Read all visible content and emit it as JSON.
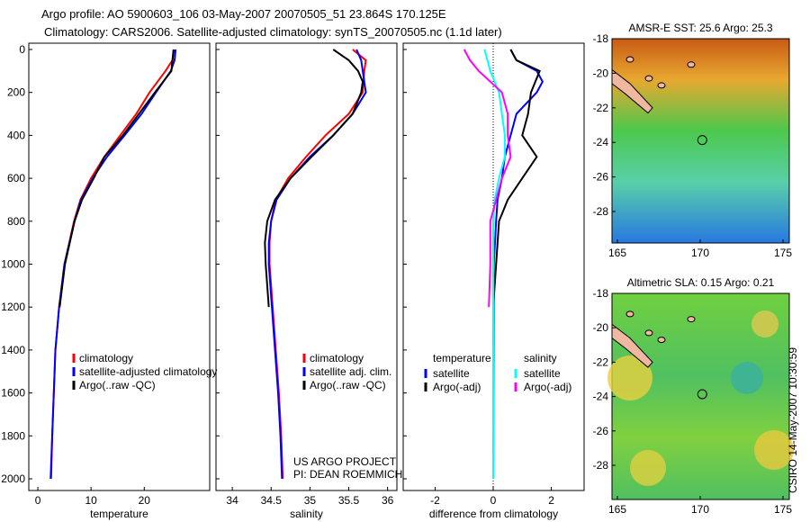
{
  "title_line1": "Argo profile: AO 5900603_106 03-May-2007 20070505_51 23.864S 170.125E",
  "title_line2": "Climatology: CARS2006. Satellite-adjusted climatology: synTS_20070505.nc (1.1d later)",
  "side_label": "CSIRO 14-May-2007 10:30:59",
  "colors": {
    "climatology": "#ff0000",
    "satellite": "#0000ff",
    "argo": "#000000",
    "sal_satellite": "#00ffff",
    "sal_argo": "#ff00ff"
  },
  "chart_data": [
    {
      "type": "line",
      "xlabel": "temperature",
      "ylim": [
        0,
        2000
      ],
      "xlim": [
        -1.7,
        32.3
      ],
      "xticks": [
        "0",
        "10",
        "20"
      ],
      "xtick_values": [
        0,
        10,
        20
      ],
      "yticks": [
        "0",
        "200",
        "400",
        "600",
        "800",
        "1000",
        "1200",
        "1400",
        "1600",
        "1800",
        "2000"
      ],
      "legend": [
        "climatology",
        "satellite-adjusted climatology",
        "Argo(..raw -QC)"
      ],
      "series": [
        {
          "name": "climatology",
          "color": "#ff0000",
          "depth": [
            0,
            50,
            100,
            200,
            300,
            400,
            500,
            600,
            700,
            800,
            1000,
            1200,
            1400,
            1600,
            1800,
            2000
          ],
          "values": [
            25.6,
            25.3,
            24,
            21,
            18.5,
            15.5,
            12.5,
            10,
            8,
            6.8,
            5,
            4,
            3.3,
            3,
            2.7,
            2.5
          ]
        },
        {
          "name": "satellite-adjusted climatology",
          "color": "#0000ff",
          "depth": [
            0,
            50,
            100,
            200,
            300,
            400,
            500,
            600,
            700,
            800,
            1000,
            1200,
            1400,
            1600,
            1800,
            2000
          ],
          "values": [
            25.9,
            25.7,
            25,
            22.2,
            19.5,
            16.3,
            13,
            10.3,
            8.1,
            6.9,
            5,
            4,
            3.3,
            3,
            2.7,
            2.4
          ]
        },
        {
          "name": "Argo(..raw -QC)",
          "color": "#000000",
          "depth": [
            0,
            50,
            100,
            200,
            300,
            400,
            500,
            600,
            700,
            800,
            1000,
            1200
          ],
          "values": [
            25.5,
            25.3,
            25.1,
            22,
            19,
            16,
            12.5,
            10.5,
            8.3,
            6.9,
            5.1,
            4.1
          ]
        }
      ]
    },
    {
      "type": "line",
      "xlabel": "salinity",
      "ylim": [
        0,
        2000
      ],
      "xlim": [
        33.79,
        36.12
      ],
      "xticks": [
        "34",
        "34.5",
        "35",
        "35.5",
        "36"
      ],
      "xtick_values": [
        34,
        34.5,
        35,
        35.5,
        36
      ],
      "legend": [
        "climatology",
        "satellite adj. clim.",
        "Argo(..raw -QC)"
      ],
      "series": [
        {
          "name": "climatology",
          "color": "#ff0000",
          "depth": [
            0,
            50,
            100,
            200,
            300,
            400,
            500,
            600,
            700,
            800,
            900,
            1000,
            1200,
            1400,
            1600,
            1800,
            2000
          ],
          "values": [
            35.55,
            35.72,
            35.7,
            35.68,
            35.5,
            35.2,
            34.95,
            34.72,
            34.56,
            34.5,
            34.48,
            34.48,
            34.52,
            34.56,
            34.6,
            34.63,
            34.65
          ]
        },
        {
          "name": "satellite adj. clim.",
          "color": "#0000ff",
          "depth": [
            0,
            50,
            100,
            200,
            300,
            400,
            500,
            600,
            700,
            800,
            900,
            1000,
            1200,
            1400,
            1600,
            1800,
            2000
          ],
          "values": [
            35.6,
            35.66,
            35.68,
            35.72,
            35.55,
            35.3,
            35.0,
            34.75,
            34.57,
            34.5,
            34.47,
            34.47,
            34.51,
            34.55,
            34.59,
            34.62,
            34.64
          ]
        },
        {
          "name": "Argo(..raw -QC)",
          "color": "#000000",
          "depth": [
            0,
            50,
            100,
            150,
            200,
            300,
            400,
            500,
            600,
            700,
            800,
            900,
            1000,
            1100,
            1200
          ],
          "values": [
            35.3,
            35.5,
            35.62,
            35.68,
            35.66,
            35.55,
            35.3,
            35.02,
            34.75,
            34.55,
            34.45,
            34.42,
            34.43,
            34.45,
            34.47
          ]
        }
      ]
    },
    {
      "type": "line",
      "xlabel": "difference from climatology",
      "ylim": [
        0,
        2000
      ],
      "xlim": [
        -3.1,
        3.13
      ],
      "xticks": [
        "-2",
        "0",
        "2"
      ],
      "xtick_values": [
        -2,
        0,
        2
      ],
      "legend_headers": [
        "temperature",
        "salinity"
      ],
      "legend": [
        "satellite",
        "Argo(-adj)",
        "satellite",
        "Argo(-adj)"
      ],
      "series": [
        {
          "name": "temperature satellite",
          "color": "#0000ff",
          "depth": [
            0,
            50,
            100,
            150,
            200,
            300,
            400,
            500,
            600,
            700,
            800,
            1000,
            2000
          ],
          "values": [
            0.6,
            0.8,
            1.5,
            1.7,
            1.5,
            0.8,
            0.6,
            0.4,
            0.3,
            0.15,
            0.1,
            0.02,
            0
          ]
        },
        {
          "name": "temperature Argo(-adj)",
          "color": "#000000",
          "depth": [
            0,
            50,
            100,
            200,
            300,
            400,
            500,
            600,
            700,
            800,
            1000,
            1200,
            2000
          ],
          "values": [
            0.6,
            0.8,
            1.6,
            1.3,
            1.2,
            1.0,
            1.5,
            1.0,
            0.5,
            0.2,
            0.1,
            0,
            0
          ]
        },
        {
          "name": "salinity satellite",
          "color": "#00ffff",
          "depth": [
            0,
            50,
            100,
            200,
            300,
            400,
            500,
            600,
            700,
            800,
            2000
          ],
          "values": [
            -0.3,
            -0.2,
            -0.1,
            0.2,
            0.3,
            0.4,
            0.4,
            0.2,
            0.05,
            0,
            0
          ]
        },
        {
          "name": "salinity Argo(-adj)",
          "color": "#ff00ff",
          "depth": [
            0,
            50,
            100,
            200,
            300,
            400,
            500,
            600,
            700,
            800,
            1000,
            1200
          ],
          "values": [
            -1.0,
            -0.8,
            -0.5,
            0.3,
            0.5,
            0.5,
            0.6,
            0.3,
            0.1,
            -0.1,
            -0.1,
            -0.15
          ]
        }
      ]
    }
  ],
  "credits": [
    "US ARGO PROJECT",
    "PI: DEAN ROEMMICH"
  ],
  "maps": [
    {
      "title": "AMSR-E SST: 25.6 Argo: 25.3",
      "lat_ticks": [
        "-18",
        "-20",
        "-22",
        "-24",
        "-26",
        "-28"
      ],
      "lon_ticks": [
        "165",
        "170",
        "175"
      ]
    },
    {
      "title": "Altimetric SLA: 0.15 Argo: 0.21",
      "lat_ticks": [
        "-18",
        "-20",
        "-22",
        "-24",
        "-26",
        "-28"
      ],
      "lon_ticks": [
        "165",
        "170",
        "175"
      ]
    }
  ]
}
